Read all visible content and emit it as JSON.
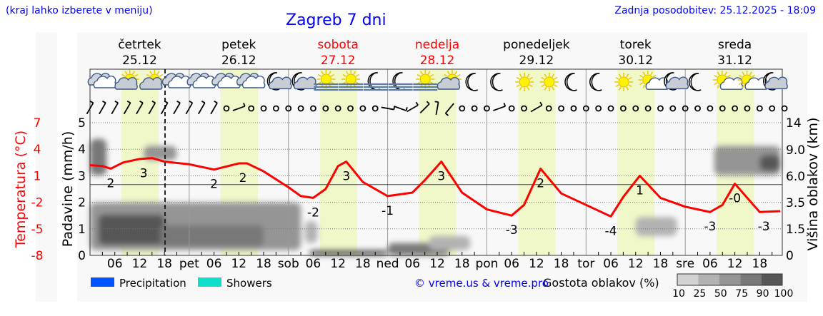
{
  "header": {
    "hint": "(kraj lahko izberete v meniju)",
    "title": "Zagreb 7 dni",
    "updated": "Zadnja posodobitev: 25.12.2025 - 18:09"
  },
  "colors": {
    "temperature": "#ff0000",
    "daylight": "#f0f7c8",
    "header_text": "#0000ff",
    "weekend": "#ff0000",
    "precipitation": "#0055ff",
    "showers": "#11ddcc"
  },
  "chart_data": {
    "type": "line",
    "days": [
      {
        "name": "četrtek",
        "date": "25.12",
        "weekend": false,
        "abbr": ""
      },
      {
        "name": "petek",
        "date": "26.12",
        "weekend": false,
        "abbr": "pet"
      },
      {
        "name": "sobota",
        "date": "27.12",
        "weekend": true,
        "abbr": "sob"
      },
      {
        "name": "nedelja",
        "date": "28.12",
        "weekend": true,
        "abbr": "ned"
      },
      {
        "name": "ponedeljek",
        "date": "29.12",
        "weekend": false,
        "abbr": "pon"
      },
      {
        "name": "torek",
        "date": "30.12",
        "weekend": false,
        "abbr": "tor"
      },
      {
        "name": "sreda",
        "date": "31.12",
        "weekend": false,
        "abbr": "sre"
      }
    ],
    "hour_ticks": [
      "06",
      "12",
      "18"
    ],
    "current_time": "25.12 18:09",
    "left_axis": {
      "label": "Padavine (mm/h)",
      "ticks": [
        0,
        1,
        2,
        3,
        4,
        5
      ],
      "range": [
        0,
        5
      ]
    },
    "temp_axis": {
      "label": "Temperatura (°C)",
      "ticks": [
        7,
        4,
        1,
        -2,
        -5,
        -8
      ],
      "range": [
        -8,
        7
      ]
    },
    "right_axis": {
      "label": "Višina oblakov (km)",
      "ticks": [
        "0",
        "1.5",
        "3.5",
        "6.0",
        "9.0",
        "14"
      ]
    },
    "grid": true,
    "temperature": [
      [
        "25.12 00",
        2.2
      ],
      [
        "25.12 03",
        2.1
      ],
      [
        "25.12 05",
        1.8
      ],
      [
        "25.12 08",
        2.5
      ],
      [
        "25.12 12",
        2.9
      ],
      [
        "25.12 15",
        3.0
      ],
      [
        "25.12 18",
        2.6
      ],
      [
        "26.12 00",
        2.3
      ],
      [
        "26.12 06",
        1.7
      ],
      [
        "26.12 12",
        2.4
      ],
      [
        "26.12 14",
        2.4
      ],
      [
        "26.12 18",
        1.5
      ],
      [
        "27.12 00",
        -0.3
      ],
      [
        "27.12 03",
        -1.3
      ],
      [
        "27.12 06",
        -1.5
      ],
      [
        "27.12 09",
        -0.5
      ],
      [
        "27.12 12",
        2.1
      ],
      [
        "27.12 14",
        2.6
      ],
      [
        "27.12 18",
        0.3
      ],
      [
        "28.12 00",
        -1.3
      ],
      [
        "28.12 06",
        -0.9
      ],
      [
        "28.12 09",
        0.5
      ],
      [
        "28.12 13",
        2.6
      ],
      [
        "28.12 18",
        -0.9
      ],
      [
        "29.12 00",
        -2.8
      ],
      [
        "29.12 06",
        -3.5
      ],
      [
        "29.12 09",
        -2.3
      ],
      [
        "29.12 13",
        1.8
      ],
      [
        "29.12 18",
        -1.0
      ],
      [
        "30.12 00",
        -2.3
      ],
      [
        "30.12 06",
        -3.6
      ],
      [
        "30.12 09",
        -1.4
      ],
      [
        "30.12 13",
        1.0
      ],
      [
        "30.12 18",
        -1.5
      ],
      [
        "31.12 00",
        -2.5
      ],
      [
        "31.12 06",
        -3.1
      ],
      [
        "31.12 09",
        -2.3
      ],
      [
        "31.12 12",
        0.1
      ],
      [
        "31.12 18",
        -3.1
      ],
      [
        "31.12 23",
        -3.0
      ]
    ],
    "temp_labels": [
      {
        "t": "25.12 05",
        "text": "2"
      },
      {
        "t": "25.12 13",
        "text": "3"
      },
      {
        "t": "26.12 06",
        "text": "2"
      },
      {
        "t": "26.12 13",
        "text": "2"
      },
      {
        "t": "27.12 06",
        "text": "-2"
      },
      {
        "t": "27.12 14",
        "text": "3"
      },
      {
        "t": "28.12 00",
        "text": "-1"
      },
      {
        "t": "28.12 13",
        "text": "3"
      },
      {
        "t": "29.12 06",
        "text": "-3"
      },
      {
        "t": "29.12 13",
        "text": "2"
      },
      {
        "t": "30.12 06",
        "text": "-4"
      },
      {
        "t": "30.12 13",
        "text": "1"
      },
      {
        "t": "31.12 06",
        "text": "-3"
      },
      {
        "t": "31.12 12",
        "text": "-0"
      },
      {
        "t": "31.12 19",
        "text": "-3"
      }
    ],
    "cloud_density": [
      {
        "from": "25.12 00",
        "to": "25.12 04",
        "km": [
          6.1,
          11
        ],
        "pct": 75
      },
      {
        "from": "25.12 00",
        "to": "27.12 03",
        "km": [
          0.3,
          3.5
        ],
        "pct": 50
      },
      {
        "from": "25.12 02",
        "to": "25.12 18",
        "km": [
          0.6,
          2.6
        ],
        "pct": 90
      },
      {
        "from": "25.12 13",
        "to": "25.12 21",
        "km": [
          7.8,
          9.7
        ],
        "pct": 50
      },
      {
        "from": "25.12 17",
        "to": "26.12 18",
        "km": [
          0.5,
          1.8
        ],
        "pct": 75
      },
      {
        "from": "27.12 04",
        "to": "27.12 07",
        "km": [
          0.7,
          2.1
        ],
        "pct": 25
      },
      {
        "from": "27.12 05",
        "to": "28.12 00",
        "km": [
          0,
          0.3
        ],
        "pct": 90
      },
      {
        "from": "28.12 00",
        "to": "28.12 15",
        "km": [
          0,
          0.7
        ],
        "pct": 75
      },
      {
        "from": "28.12 10",
        "to": "28.12 20",
        "km": [
          0.3,
          1.1
        ],
        "pct": 25
      },
      {
        "from": "30.12 12",
        "to": "30.12 22",
        "km": [
          1.1,
          2.4
        ],
        "pct": 25
      },
      {
        "from": "31.12 07",
        "to": "31.12 23",
        "km": [
          6.1,
          9.7
        ],
        "pct": 50
      },
      {
        "from": "31.12 18",
        "to": "31.12 23",
        "km": [
          6.6,
          8.4
        ],
        "pct": 90
      }
    ],
    "density_scale": {
      "label": "Gostota oblakov (%)",
      "levels": [
        "10",
        "25",
        "50",
        "75",
        "90",
        "100"
      ],
      "colors": [
        "#d2d2d2",
        "#b2b2b2",
        "#959595",
        "#787878",
        "#575757"
      ]
    },
    "weather_icons": [
      "cloudy",
      "sun-cloud",
      "sun-cloud",
      "cloudy",
      "cloudy",
      "cloudy",
      "cloudy",
      "moon-cloud",
      "moon-cloud",
      "sun-fog",
      "sun-fog",
      "moon-fog",
      "moon-fog",
      "sun-fog",
      "sun-cloud",
      "moon",
      "moon",
      "sun",
      "sun",
      "moon",
      "moon",
      "sun",
      "sun-small-cloud",
      "moon-cloud",
      "moon",
      "sun-small-cloud",
      "sun-small-cloud",
      "moon-cloud"
    ],
    "wind": [
      30,
      30,
      30,
      30,
      30,
      30,
      30,
      30,
      30,
      30,
      30,
      "calm",
      70,
      "calm",
      "calm",
      "calm",
      "calm",
      "calm",
      "calm",
      "calm",
      "calm",
      "calm",
      "calm",
      "calm",
      100,
      110,
      60,
      45,
      10,
      220,
      "calm",
      "calm",
      "calm",
      70,
      "calm",
      "calm",
      60,
      "calm",
      "calm",
      "calm",
      "calm",
      "calm",
      "calm",
      "calm",
      "calm",
      "calm",
      "calm",
      "calm",
      "calm",
      "calm",
      "calm",
      "calm",
      "calm",
      "calm",
      "calm",
      "calm",
      "calm"
    ],
    "legend": [
      {
        "label": "Precipitation",
        "color": "#0055ff"
      },
      {
        "label": "Showers",
        "color": "#11ddcc"
      }
    ]
  },
  "footer": {
    "credit": "© vreme.us & vreme.pro"
  }
}
